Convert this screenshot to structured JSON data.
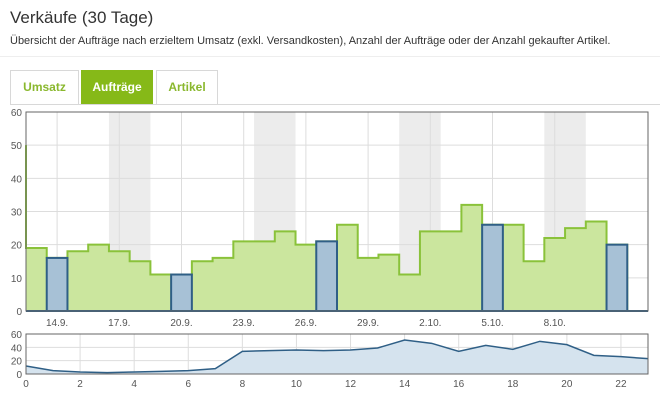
{
  "header": {
    "title": "Verkäufe (30 Tage)",
    "subtitle": "Übersicht der Aufträge nach erzieltem Umsatz (exkl. Versandkosten), Anzahl der Aufträge oder der Anzahl gekaufter Artikel."
  },
  "tabs": [
    {
      "label": "Umsatz",
      "active": false
    },
    {
      "label": "Aufträge",
      "active": true
    },
    {
      "label": "Artikel",
      "active": false
    }
  ],
  "colors": {
    "green_fill": "#cbe69e",
    "green_stroke": "#8ac23a",
    "blue_fill": "#a7c1d6",
    "blue_stroke": "#2f5f86",
    "weekend_band": "#ececec",
    "tab_active": "#86b918",
    "tab_text": "#8ab82e"
  },
  "chart_data": [
    {
      "type": "bar",
      "x": [
        13,
        14,
        15,
        16,
        17,
        18,
        19,
        20,
        21,
        22,
        23,
        24,
        25,
        26,
        27,
        28,
        29,
        30,
        31,
        32,
        33,
        34,
        35,
        36,
        37,
        38,
        39,
        40,
        41,
        42
      ],
      "x_tick_labels": [
        {
          "x": 14,
          "label": "14.9."
        },
        {
          "x": 17,
          "label": "17.9."
        },
        {
          "x": 20,
          "label": "20.9."
        },
        {
          "x": 23,
          "label": "23.9."
        },
        {
          "x": 26,
          "label": "26.9."
        },
        {
          "x": 29,
          "label": "29.9."
        },
        {
          "x": 32,
          "label": "2.10."
        },
        {
          "x": 35,
          "label": "5.10."
        },
        {
          "x": 38,
          "label": "8.10."
        }
      ],
      "series": [
        {
          "values": [
            19,
            16,
            18,
            20,
            18,
            15,
            11,
            11,
            15,
            16,
            21,
            21,
            24,
            20,
            21,
            26,
            16,
            17,
            11,
            24,
            24,
            32,
            26,
            26,
            15,
            22,
            25,
            27,
            20,
            0
          ]
        }
      ],
      "highlighted_x": [
        14,
        20,
        27,
        35,
        41
      ],
      "weekend_bands": [
        [
          17,
          18
        ],
        [
          24,
          25
        ],
        [
          31,
          32
        ],
        [
          38,
          39
        ]
      ],
      "ylim": [
        0,
        60
      ],
      "y_ticks": [
        0,
        10,
        20,
        30,
        40,
        50,
        60
      ],
      "grid": true
    },
    {
      "type": "line",
      "x": [
        0,
        1,
        2,
        3,
        4,
        5,
        6,
        7,
        8,
        9,
        10,
        11,
        12,
        13,
        14,
        15,
        16,
        17,
        18,
        19,
        20,
        21,
        22,
        23
      ],
      "values": [
        12,
        5,
        3,
        2,
        3,
        4,
        5,
        8,
        34,
        35,
        36,
        35,
        36,
        39,
        51,
        46,
        34,
        43,
        37,
        49,
        44,
        28,
        26,
        23
      ],
      "x_ticks": [
        0,
        2,
        4,
        6,
        8,
        10,
        12,
        14,
        16,
        18,
        20,
        22
      ],
      "ylim": [
        0,
        60
      ],
      "y_ticks": [
        0,
        20,
        40,
        60
      ],
      "grid": true
    }
  ]
}
